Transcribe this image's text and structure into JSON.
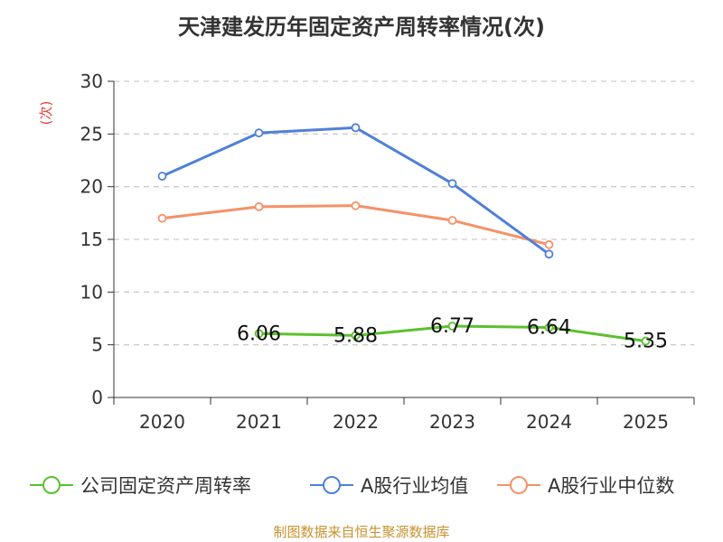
{
  "chart_data": {
    "type": "line",
    "title": "天津建发历年固定资产周转率情况(次)",
    "ylabel": "(次)",
    "xlabel": "",
    "categories": [
      "2020",
      "2021",
      "2022",
      "2023",
      "2024",
      "2025"
    ],
    "ylim": [
      0,
      30
    ],
    "yticks": [
      0,
      5,
      10,
      15,
      20,
      25,
      30
    ],
    "grid": true,
    "legend_position": "bottom",
    "series": [
      {
        "name": "公司固定资产周转率",
        "color": "#5ac12e",
        "values": [
          null,
          6.06,
          5.88,
          6.77,
          6.64,
          5.35
        ],
        "labels": [
          "",
          "6.06",
          "5.88",
          "6.77",
          "6.64",
          "5.35"
        ]
      },
      {
        "name": "A股行业均值",
        "color": "#5080d8",
        "values": [
          21.0,
          25.1,
          25.6,
          20.3,
          13.6,
          null
        ]
      },
      {
        "name": "A股行业中位数",
        "color": "#f59168",
        "values": [
          17.0,
          18.1,
          18.2,
          16.8,
          14.5,
          null
        ]
      }
    ],
    "source": "制图数据来自恒生聚源数据库"
  }
}
